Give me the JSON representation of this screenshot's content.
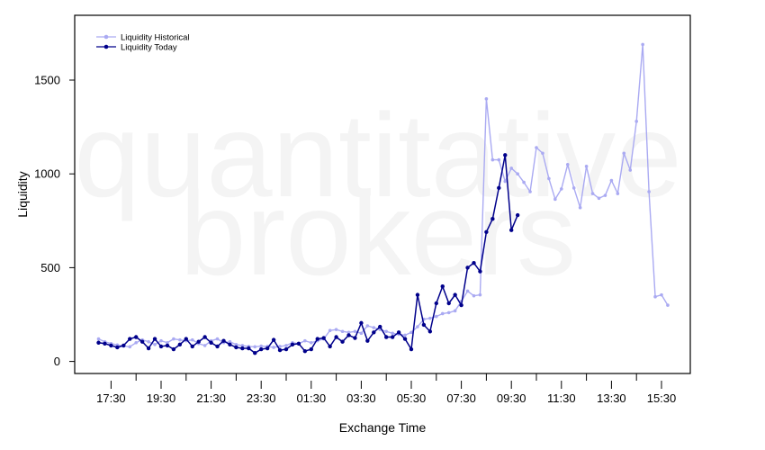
{
  "watermark": {
    "line1": "quantitative",
    "line2": "brokers"
  },
  "chart_data": {
    "type": "line",
    "title": "",
    "xlabel": "Exchange Time",
    "ylabel": "Liquidity",
    "x_tick_labels": [
      "17:30",
      "19:30",
      "21:30",
      "23:30",
      "01:30",
      "03:30",
      "05:30",
      "07:30",
      "09:30",
      "11:30",
      "13:30",
      "15:30"
    ],
    "x_step_minutes": 15,
    "x_start": "17:00",
    "ylim": [
      0,
      1720
    ],
    "y_ticks": [
      0,
      500,
      1000,
      1500
    ],
    "grid": false,
    "legend_position": "top-left",
    "series": [
      {
        "name": "Liquidity Historical",
        "color": "#aaaaf2",
        "values": [
          120,
          105,
          95,
          88,
          82,
          78,
          100,
          115,
          105,
          90,
          110,
          100,
          120,
          115,
          110,
          115,
          95,
          85,
          110,
          120,
          100,
          105,
          90,
          85,
          80,
          78,
          82,
          80,
          75,
          80,
          85,
          100,
          95,
          110,
          100,
          110,
          120,
          165,
          170,
          160,
          155,
          160,
          150,
          190,
          180,
          170,
          160,
          150,
          145,
          140,
          155,
          185,
          225,
          230,
          240,
          255,
          260,
          270,
          320,
          375,
          350,
          355,
          1400,
          1075,
          1075,
          960,
          1030,
          1000,
          955,
          905,
          1140,
          1110,
          975,
          865,
          920,
          1050,
          925,
          820,
          1040,
          895,
          870,
          885,
          965,
          895,
          1110,
          1020,
          1280,
          1690,
          905,
          345,
          355,
          300
        ]
      },
      {
        "name": "Liquidity Today",
        "color": "#00008b",
        "values": [
          100,
          95,
          85,
          75,
          85,
          120,
          130,
          105,
          70,
          120,
          80,
          85,
          65,
          90,
          120,
          80,
          105,
          130,
          100,
          80,
          110,
          90,
          75,
          70,
          70,
          45,
          65,
          70,
          115,
          60,
          65,
          90,
          95,
          55,
          65,
          120,
          125,
          80,
          130,
          105,
          140,
          125,
          205,
          110,
          155,
          185,
          130,
          130,
          155,
          120,
          65,
          355,
          195,
          160,
          310,
          400,
          310,
          355,
          300,
          500,
          525,
          480,
          690,
          760,
          925,
          1100,
          700,
          780
        ]
      }
    ]
  }
}
